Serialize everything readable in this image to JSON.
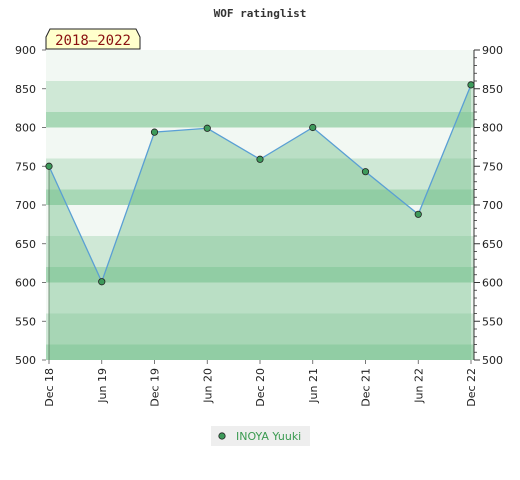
{
  "chart_data": {
    "type": "area",
    "title": "WOF ratinglist",
    "period_label": "2018–2022",
    "x": [
      "Dec 18",
      "Jun 19",
      "Dec 19",
      "Jun 20",
      "Dec 20",
      "Jun 21",
      "Dec 21",
      "Jun 22",
      "Dec 22"
    ],
    "series": [
      {
        "name": "INOYA Yuuki",
        "values": [
          750,
          601,
          794,
          799,
          759,
          800,
          743,
          688,
          855
        ]
      }
    ],
    "ylim": [
      500,
      900
    ],
    "yticks": [
      500,
      550,
      600,
      650,
      700,
      750,
      800,
      850,
      900
    ],
    "y_axis_both_sides": true,
    "grid": "horizontal bands",
    "legend": "bottom-center",
    "colors": {
      "line": "#5a9fd4",
      "fill": "#76c08f",
      "marker": "#3d9a5a",
      "band_light": "#f2f8f3",
      "band_mid": "#cfe8d6",
      "band_dark": "#a8d8b6",
      "badge_bg": "#ffffcc",
      "badge_text": "#8a1010"
    }
  }
}
